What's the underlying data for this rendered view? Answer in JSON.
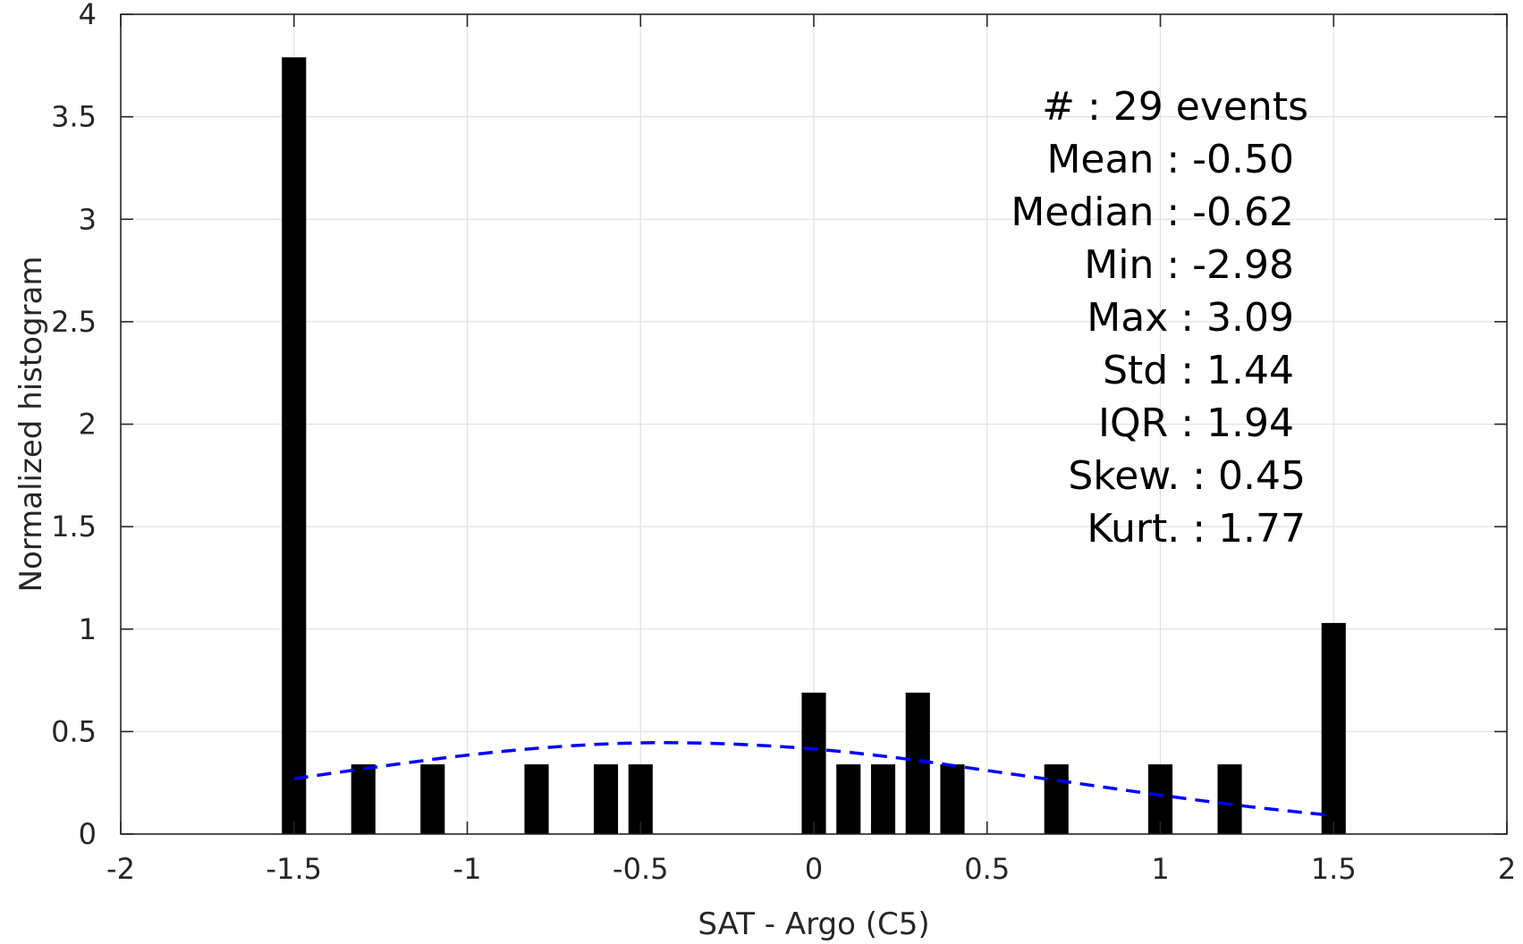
{
  "chart_data": {
    "type": "bar",
    "title": "",
    "xlabel": "SAT - Argo (C5)",
    "ylabel": "Normalized histogram",
    "xlim": [
      -2,
      2
    ],
    "ylim": [
      0,
      4
    ],
    "xticks": [
      -2,
      -1.5,
      -1,
      -0.5,
      0,
      0.5,
      1,
      1.5,
      2
    ],
    "xtick_labels": [
      "-2",
      "-1.5",
      "-1",
      "-0.5",
      "0",
      "0.5",
      "1",
      "1.5",
      "2"
    ],
    "yticks": [
      0,
      0.5,
      1,
      1.5,
      2,
      2.5,
      3,
      3.5,
      4
    ],
    "ytick_labels": [
      "0",
      "0.5",
      "1",
      "1.5",
      "2",
      "2.5",
      "3",
      "3.5",
      "4"
    ],
    "grid": true,
    "bar_width": 0.07,
    "bars": [
      {
        "x": -1.5,
        "y": 3.79
      },
      {
        "x": -1.3,
        "y": 0.34
      },
      {
        "x": -1.1,
        "y": 0.34
      },
      {
        "x": -0.8,
        "y": 0.34
      },
      {
        "x": -0.6,
        "y": 0.34
      },
      {
        "x": -0.5,
        "y": 0.34
      },
      {
        "x": 0.0,
        "y": 0.69
      },
      {
        "x": 0.1,
        "y": 0.34
      },
      {
        "x": 0.2,
        "y": 0.34
      },
      {
        "x": 0.3,
        "y": 0.69
      },
      {
        "x": 0.4,
        "y": 0.34
      },
      {
        "x": 0.7,
        "y": 0.34
      },
      {
        "x": 1.0,
        "y": 0.34
      },
      {
        "x": 1.2,
        "y": 0.34
      },
      {
        "x": 1.5,
        "y": 1.03
      }
    ],
    "fit_curve": {
      "style": "dashed",
      "color": "#0000ff",
      "points": [
        {
          "x": -1.5,
          "y": 0.27
        },
        {
          "x": -1.25,
          "y": 0.33
        },
        {
          "x": -1.0,
          "y": 0.385
        },
        {
          "x": -0.75,
          "y": 0.425
        },
        {
          "x": -0.5,
          "y": 0.445
        },
        {
          "x": -0.25,
          "y": 0.44
        },
        {
          "x": 0.0,
          "y": 0.415
        },
        {
          "x": 0.25,
          "y": 0.37
        },
        {
          "x": 0.5,
          "y": 0.31
        },
        {
          "x": 0.75,
          "y": 0.25
        },
        {
          "x": 1.0,
          "y": 0.19
        },
        {
          "x": 1.25,
          "y": 0.135
        },
        {
          "x": 1.5,
          "y": 0.09
        }
      ]
    },
    "annotations": [
      "#  : 29 events",
      "Mean : -0.50",
      "Median : -0.62",
      "Min : -2.98",
      "Max : 3.09",
      "Std : 1.44",
      "IQR : 1.94",
      "Skew. : 0.45",
      "Kurt. : 1.77"
    ],
    "colors": {
      "bar": "#000000",
      "grid": "#e0e0e0",
      "axis": "#262626"
    }
  }
}
